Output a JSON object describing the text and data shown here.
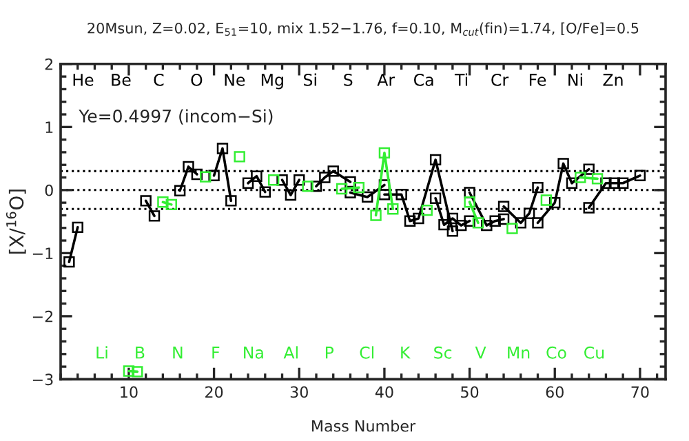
{
  "chart_data": {
    "type": "line",
    "title": "20Msun, Z=0.02, E$_{51}$=10, mix 1.52−1.76, f=0.10, M$_{cut}$(fin)=1.74, [O/Fe]=0.5",
    "xlabel": "Mass Number",
    "ylabel": "[X/$^{16}$O]",
    "xlim": [
      2,
      73
    ],
    "xticks": [
      10,
      20,
      30,
      40,
      50,
      60,
      70
    ],
    "ylim": [
      -3,
      2
    ],
    "yticks": [
      {
        "value": -3,
        "label": "−3"
      },
      {
        "value": -2,
        "label": "−2"
      },
      {
        "value": -1,
        "label": "−1"
      },
      0,
      1,
      2
    ],
    "marker": "square",
    "line_style": "solid",
    "grid": false,
    "legend": false,
    "series": [
      {
        "color": "#000000",
        "x": [
          3,
          4,
          null,
          12,
          13,
          null,
          16,
          17,
          18,
          null,
          20,
          21,
          22,
          null,
          24,
          25,
          26,
          null,
          28,
          29,
          30,
          null,
          32,
          33,
          34,
          36,
          null,
          36,
          38,
          40,
          null,
          40,
          42,
          43,
          44,
          46,
          48,
          null,
          46,
          47,
          48,
          49,
          50,
          null,
          50,
          52,
          53,
          54,
          null,
          54,
          56,
          57,
          58,
          null,
          58,
          60,
          61,
          62,
          64,
          null,
          64,
          66,
          67,
          68,
          70
        ],
        "values": [
          -1.14,
          -0.59,
          null,
          -0.17,
          -0.41,
          null,
          -0.01,
          0.37,
          0.25,
          null,
          0.23,
          0.66,
          -0.17,
          null,
          0.11,
          0.22,
          -0.03,
          null,
          0.16,
          -0.08,
          0.16,
          null,
          0.06,
          0.2,
          0.3,
          0.13,
          null,
          -0.04,
          -0.11,
          0.08,
          null,
          -0.07,
          -0.07,
          -0.49,
          -0.45,
          0.48,
          -0.65,
          null,
          -0.13,
          -0.55,
          -0.45,
          -0.56,
          -0.49,
          null,
          -0.04,
          -0.56,
          -0.49,
          -0.46,
          null,
          -0.26,
          -0.52,
          -0.37,
          0.04,
          null,
          -0.52,
          -0.2,
          0.42,
          0.11,
          0.33,
          null,
          -0.28,
          0.11,
          0.11,
          0.11,
          0.23
        ]
      },
      {
        "color": "#33ee33",
        "x": [
          10,
          11,
          null,
          14,
          15,
          null,
          19,
          null,
          23,
          null,
          27,
          null,
          31,
          null,
          35,
          37,
          null,
          39,
          40,
          41,
          null,
          45,
          null,
          50,
          51,
          null,
          55,
          null,
          59,
          null,
          63,
          65
        ],
        "values": [
          -2.87,
          -2.88,
          null,
          -0.19,
          -0.23,
          null,
          0.21,
          null,
          0.53,
          null,
          0.16,
          null,
          0.06,
          null,
          0.02,
          0.04,
          null,
          -0.4,
          0.59,
          -0.3,
          null,
          -0.32,
          null,
          -0.19,
          -0.52,
          null,
          -0.61,
          null,
          -0.16,
          null,
          0.2,
          0.18
        ]
      }
    ],
    "ref_lines": [
      {
        "axis": "y",
        "value": 0.3,
        "line_style": "dotted",
        "color": "#000000"
      },
      {
        "axis": "y",
        "value": 0,
        "line_style": "dotted",
        "color": "#000000"
      },
      {
        "axis": "y",
        "value": -0.3,
        "line_style": "dotted",
        "color": "#000000"
      }
    ],
    "annotations": [
      "Ye=0.4997 (incom−Si)",
      "He",
      "Li",
      "Be",
      "B",
      "C",
      "N",
      "O",
      "F",
      "Ne",
      "Na",
      "Mg",
      "Al",
      "Si",
      "P",
      "S",
      "Cl",
      "Ar",
      "K",
      "Ca",
      "Sc",
      "Ti",
      "V",
      "Cr",
      "Mn",
      "Fe",
      "Co",
      "Ni",
      "Cu",
      "Zn"
    ]
  }
}
